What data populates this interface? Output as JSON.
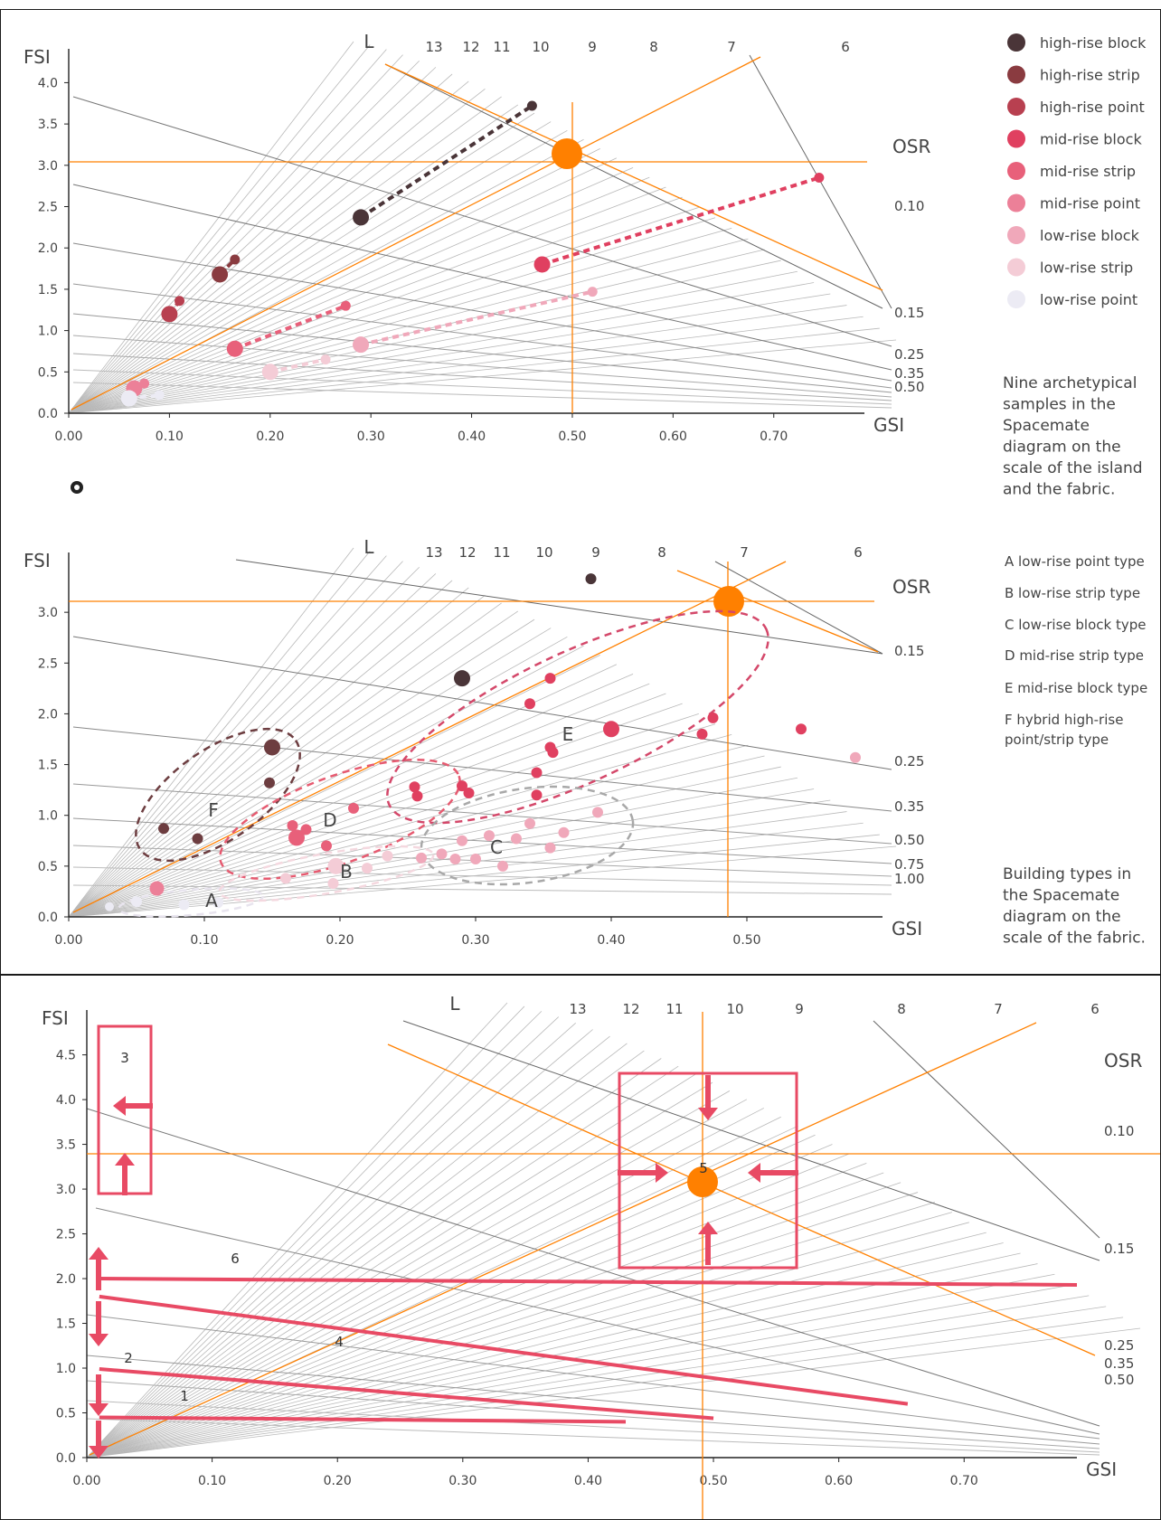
{
  "colors": {
    "accent": "#ff8000",
    "arrow": "#e84a64",
    "grid": "#b8b8b8",
    "osr": "#6a6a6a",
    "f_group": "#6d3d40",
    "d_group": "#e65a70",
    "e_group": "#d4486a",
    "c_group": "#a8a8a8"
  },
  "chart_data": [
    {
      "id": "top",
      "type": "scatter",
      "xlabel": "GSI",
      "ylabel": "FSI",
      "xlim": [
        0,
        0.79
      ],
      "ylim": [
        0,
        4.3
      ],
      "x_ticks": [
        "0.00",
        "0.10",
        "0.20",
        "0.30",
        "0.40",
        "0.50",
        "0.60",
        "0.70"
      ],
      "y_ticks": [
        "0.0",
        "0.5",
        "1.0",
        "1.5",
        "2.0",
        "2.5",
        "3.0",
        "3.5",
        "4.0"
      ],
      "l_title": "L",
      "l_labels": [
        "13",
        "12",
        "11",
        "10",
        "9",
        "8",
        "7",
        "6"
      ],
      "osr_title": "OSR",
      "osr_labels": [
        "0.10",
        "0.15",
        "0.25",
        "0.35",
        "0.50"
      ],
      "legend_placement": "right",
      "legend": [
        {
          "label": "high-rise block",
          "color": "#4a3538"
        },
        {
          "label": "high-rise strip",
          "color": "#8a3b40"
        },
        {
          "label": "high-rise point",
          "color": "#b84050"
        },
        {
          "label": "mid-rise block",
          "color": "#e04060"
        },
        {
          "label": "mid-rise strip",
          "color": "#e8607a"
        },
        {
          "label": "mid-rise point",
          "color": "#ec8098"
        },
        {
          "label": "low-rise block",
          "color": "#f0a8ba"
        },
        {
          "label": "low-rise strip",
          "color": "#f4ccd6"
        },
        {
          "label": "low-rise point",
          "color": "#ecebf4"
        }
      ],
      "note": [
        "Nine archetypical",
        "samples in the",
        "Spacemate",
        "diagram on the",
        "scale of the island",
        "and the fabric."
      ],
      "series": [
        {
          "color": "#4a3538",
          "points": [
            [
              0.29,
              2.37
            ],
            [
              0.46,
              3.72
            ]
          ]
        },
        {
          "color": "#8a3b40",
          "points": [
            [
              0.15,
              1.68
            ],
            [
              0.165,
              1.86
            ]
          ]
        },
        {
          "color": "#b84050",
          "points": [
            [
              0.1,
              1.2
            ],
            [
              0.11,
              1.36
            ]
          ]
        },
        {
          "color": "#e04060",
          "points": [
            [
              0.47,
              1.8
            ],
            [
              0.745,
              2.85
            ]
          ]
        },
        {
          "color": "#e8607a",
          "points": [
            [
              0.165,
              0.78
            ],
            [
              0.275,
              1.3
            ]
          ]
        },
        {
          "color": "#ec8098",
          "points": [
            [
              0.065,
              0.3
            ],
            [
              0.075,
              0.36
            ]
          ]
        },
        {
          "color": "#f0a8ba",
          "points": [
            [
              0.29,
              0.83
            ],
            [
              0.52,
              1.47
            ]
          ]
        },
        {
          "color": "#f4ccd6",
          "points": [
            [
              0.2,
              0.5
            ],
            [
              0.255,
              0.65
            ]
          ]
        },
        {
          "color": "#ecebf4",
          "points": [
            [
              0.06,
              0.18
            ],
            [
              0.09,
              0.22
            ]
          ]
        }
      ]
    },
    {
      "id": "middle",
      "type": "scatter",
      "xlabel": "GSI",
      "ylabel": "FSI",
      "xlim": [
        0,
        0.6
      ],
      "ylim": [
        0,
        3.5
      ],
      "x_ticks": [
        "0.00",
        "0.10",
        "0.20",
        "0.30",
        "0.40",
        "0.50"
      ],
      "y_ticks": [
        "0.0",
        "0.5",
        "1.0",
        "1.5",
        "2.0",
        "2.5",
        "3.0"
      ],
      "l_title": "L",
      "l_labels": [
        "13",
        "12",
        "11",
        "10",
        "9",
        "8",
        "7",
        "6"
      ],
      "osr_title": "OSR",
      "osr_labels": [
        "0.15",
        "0.25",
        "0.35",
        "0.50",
        "0.75",
        "1.00"
      ],
      "types": [
        "A  low-rise point type",
        "B  low-rise strip type",
        "C  low-rise block type",
        "D  mid-rise strip type",
        "E  mid-rise block type",
        "F  hybrid high-rise",
        "point/strip type"
      ],
      "group_labels": [
        "A",
        "B",
        "C",
        "D",
        "E",
        "F"
      ],
      "note": [
        "Building types in",
        "the Spacemate",
        "diagram on the",
        "scale of the fabric."
      ],
      "points": [
        {
          "x": 0.385,
          "y": 3.33,
          "c": "#4a3538",
          "r": 6
        },
        {
          "x": 0.29,
          "y": 2.35,
          "c": "#4a3538",
          "r": 9
        },
        {
          "x": 0.15,
          "y": 1.67,
          "c": "#6d3d40",
          "r": 9
        },
        {
          "x": 0.148,
          "y": 1.32,
          "c": "#6d3d40",
          "r": 6
        },
        {
          "x": 0.07,
          "y": 0.87,
          "c": "#6d3d40",
          "r": 6
        },
        {
          "x": 0.095,
          "y": 0.77,
          "c": "#6d3d40",
          "r": 6
        },
        {
          "x": 0.355,
          "y": 2.35,
          "c": "#e04060",
          "r": 6
        },
        {
          "x": 0.34,
          "y": 2.1,
          "c": "#e04060",
          "r": 6
        },
        {
          "x": 0.4,
          "y": 1.85,
          "c": "#e04060",
          "r": 9
        },
        {
          "x": 0.355,
          "y": 1.67,
          "c": "#e04060",
          "r": 6
        },
        {
          "x": 0.357,
          "y": 1.62,
          "c": "#e04060",
          "r": 6
        },
        {
          "x": 0.345,
          "y": 1.42,
          "c": "#e04060",
          "r": 6
        },
        {
          "x": 0.345,
          "y": 1.2,
          "c": "#e04060",
          "r": 6
        },
        {
          "x": 0.29,
          "y": 1.29,
          "c": "#e04060",
          "r": 6
        },
        {
          "x": 0.295,
          "y": 1.22,
          "c": "#e04060",
          "r": 6
        },
        {
          "x": 0.255,
          "y": 1.28,
          "c": "#e04060",
          "r": 6
        },
        {
          "x": 0.257,
          "y": 1.19,
          "c": "#e04060",
          "r": 6
        },
        {
          "x": 0.475,
          "y": 1.96,
          "c": "#e04060",
          "r": 6
        },
        {
          "x": 0.467,
          "y": 1.8,
          "c": "#e04060",
          "r": 6
        },
        {
          "x": 0.54,
          "y": 1.85,
          "c": "#e04060",
          "r": 6
        },
        {
          "x": 0.58,
          "y": 1.57,
          "c": "#f0a8ba",
          "r": 6
        },
        {
          "x": 0.21,
          "y": 1.07,
          "c": "#e8607a",
          "r": 6
        },
        {
          "x": 0.165,
          "y": 0.9,
          "c": "#e8607a",
          "r": 6
        },
        {
          "x": 0.175,
          "y": 0.86,
          "c": "#e8607a",
          "r": 6
        },
        {
          "x": 0.168,
          "y": 0.78,
          "c": "#e8607a",
          "r": 9
        },
        {
          "x": 0.19,
          "y": 0.7,
          "c": "#e8607a",
          "r": 6
        },
        {
          "x": 0.39,
          "y": 1.03,
          "c": "#f0a8ba",
          "r": 6
        },
        {
          "x": 0.34,
          "y": 0.92,
          "c": "#f0a8ba",
          "r": 6
        },
        {
          "x": 0.365,
          "y": 0.83,
          "c": "#f0a8ba",
          "r": 6
        },
        {
          "x": 0.31,
          "y": 0.8,
          "c": "#f0a8ba",
          "r": 6
        },
        {
          "x": 0.33,
          "y": 0.77,
          "c": "#f0a8ba",
          "r": 6
        },
        {
          "x": 0.355,
          "y": 0.68,
          "c": "#f0a8ba",
          "r": 6
        },
        {
          "x": 0.29,
          "y": 0.75,
          "c": "#f0a8ba",
          "r": 6
        },
        {
          "x": 0.275,
          "y": 0.62,
          "c": "#f0a8ba",
          "r": 6
        },
        {
          "x": 0.285,
          "y": 0.57,
          "c": "#f0a8ba",
          "r": 6
        },
        {
          "x": 0.3,
          "y": 0.57,
          "c": "#f0a8ba",
          "r": 6
        },
        {
          "x": 0.32,
          "y": 0.5,
          "c": "#f0a8ba",
          "r": 6
        },
        {
          "x": 0.26,
          "y": 0.58,
          "c": "#f0a8ba",
          "r": 6
        },
        {
          "x": 0.197,
          "y": 0.5,
          "c": "#f4ccd6",
          "r": 9
        },
        {
          "x": 0.22,
          "y": 0.48,
          "c": "#f4ccd6",
          "r": 6
        },
        {
          "x": 0.235,
          "y": 0.6,
          "c": "#f4ccd6",
          "r": 6
        },
        {
          "x": 0.195,
          "y": 0.33,
          "c": "#f4ccd6",
          "r": 6
        },
        {
          "x": 0.16,
          "y": 0.38,
          "c": "#f4ccd6",
          "r": 6
        },
        {
          "x": 0.065,
          "y": 0.28,
          "c": "#ec8098",
          "r": 8
        },
        {
          "x": 0.05,
          "y": 0.15,
          "c": "#ecebf4",
          "r": 6
        },
        {
          "x": 0.085,
          "y": 0.12,
          "c": "#ecebf4",
          "r": 6
        },
        {
          "x": 0.11,
          "y": 0.14,
          "c": "#ecebf4",
          "r": 6
        },
        {
          "x": 0.03,
          "y": 0.1,
          "c": "#ecebf4",
          "r": 5
        }
      ]
    },
    {
      "id": "bottom",
      "type": "line",
      "xlabel": "GSI",
      "ylabel": "FSI",
      "xlim": [
        0,
        0.79
      ],
      "ylim": [
        0,
        4.9
      ],
      "x_ticks": [
        "0.00",
        "0.10",
        "0.20",
        "0.30",
        "0.40",
        "0.50",
        "0.60",
        "0.70"
      ],
      "y_ticks": [
        "0.0",
        "0.5",
        "1.0",
        "1.5",
        "2.0",
        "2.5",
        "3.0",
        "3.5",
        "4.0",
        "4.5"
      ],
      "l_title": "L",
      "l_labels": [
        "13",
        "12",
        "11",
        "10",
        "9",
        "8",
        "7",
        "6"
      ],
      "osr_title": "OSR",
      "osr_labels": [
        "0.10",
        "0.15",
        "0.25",
        "0.35",
        "0.50"
      ],
      "region_labels": [
        "3",
        "6",
        "4",
        "2",
        "1",
        "5"
      ],
      "lines": [
        {
          "x1": 0.01,
          "y1": 2.0,
          "x2": 0.79,
          "y2": 1.93
        },
        {
          "x1": 0.01,
          "y1": 1.8,
          "x2": 0.655,
          "y2": 0.6
        },
        {
          "x1": 0.01,
          "y1": 0.99,
          "x2": 0.5,
          "y2": 0.44
        },
        {
          "x1": 0.01,
          "y1": 0.45,
          "x2": 0.43,
          "y2": 0.4
        }
      ]
    }
  ]
}
